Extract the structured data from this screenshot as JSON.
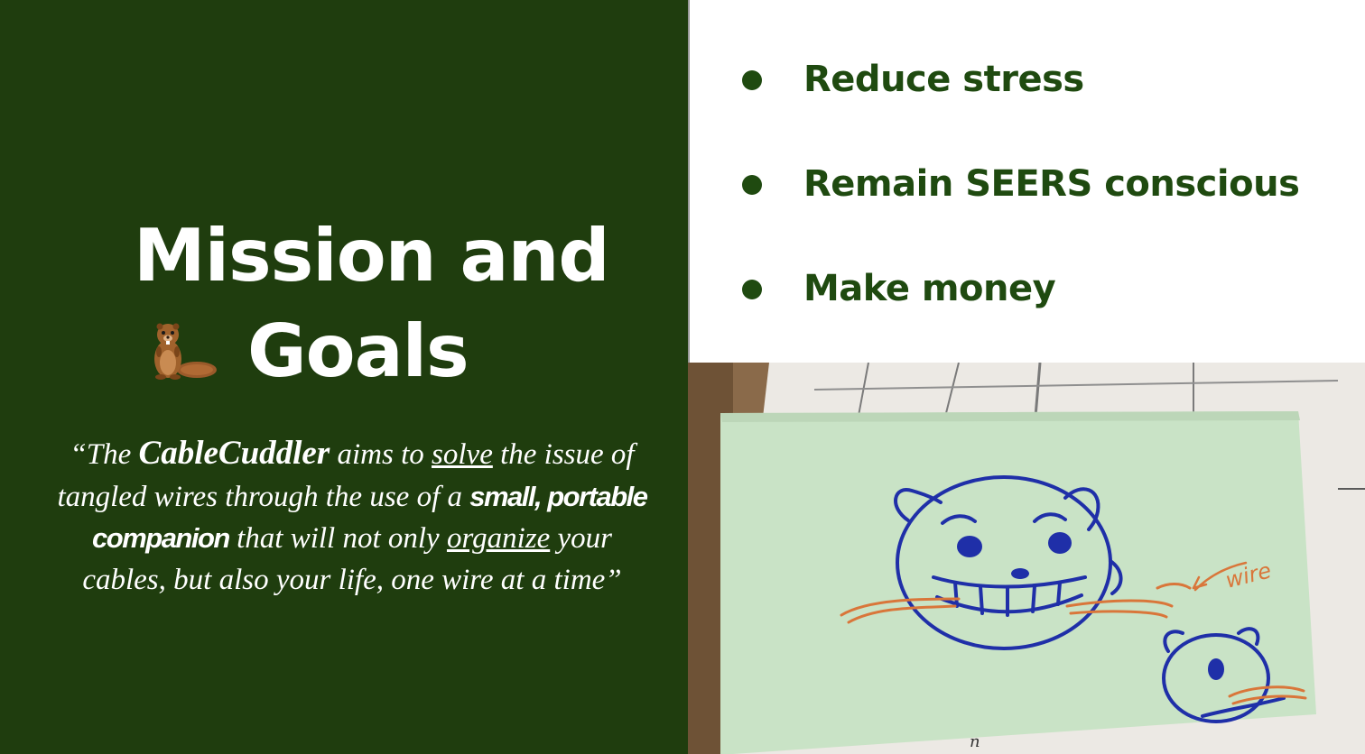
{
  "title": {
    "line1": "Mission and",
    "line2": "Goals"
  },
  "mission": {
    "part1": "“The ",
    "brand": "CableCuddler",
    "part2": " aims to ",
    "solve": "solve",
    "part3": " the issue of tangled wires through the use of a ",
    "companion": "small, portable companion",
    "part4": " that will not only ",
    "organize": "organize",
    "part5": " your cables, but also your life, one wire at a time”"
  },
  "goals": [
    {
      "label": "Reduce stress"
    },
    {
      "label": "Remain SEERS conscious"
    },
    {
      "label": "Make money"
    }
  ],
  "sketch": {
    "annotation_big": "wire",
    "annotation_small": "n"
  },
  "colors": {
    "panel_bg": "#1f3d0e",
    "goal_text": "#1f4a10",
    "sticky_note": "#c9e3c6",
    "ink_blue": "#1f2fa8",
    "ink_orange": "#d9763a"
  }
}
